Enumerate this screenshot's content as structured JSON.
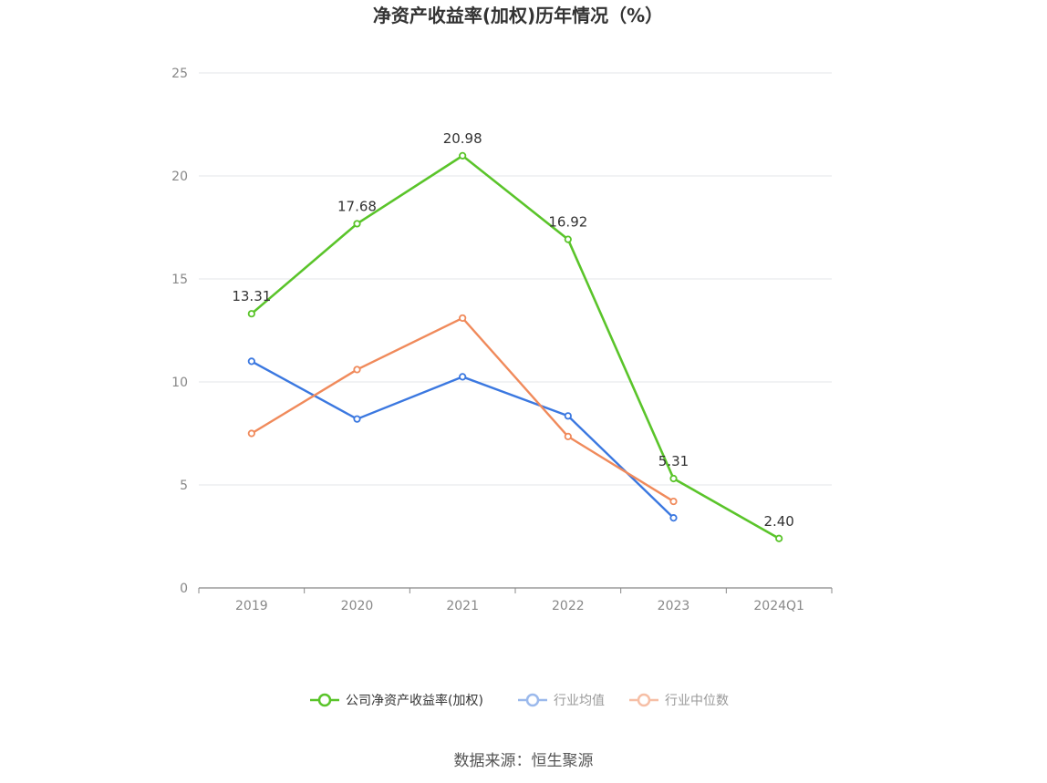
{
  "chart_data": {
    "type": "line",
    "title": "净资产收益率(加权)历年情况（%）",
    "categories": [
      "2019",
      "2020",
      "2021",
      "2022",
      "2023",
      "2024Q1"
    ],
    "ylim": [
      0,
      25
    ],
    "yticks": [
      "0",
      "5",
      "10",
      "15",
      "20",
      "25"
    ],
    "grid": true,
    "legend_position": "bottom",
    "series": [
      {
        "name": "公司净资产收益率(加权)",
        "color": "#5ac42a",
        "values": [
          13.31,
          17.68,
          20.98,
          16.92,
          5.31,
          2.4
        ],
        "labels": [
          "13.31",
          "17.68",
          "20.98",
          "16.92",
          "5.31",
          "2.40"
        ]
      },
      {
        "name": "行业均值",
        "color": "#3b78e0",
        "values": [
          11.0,
          8.2,
          10.25,
          8.35,
          3.4,
          null
        ],
        "labels": []
      },
      {
        "name": "行业中位数",
        "color": "#f08a5b",
        "values": [
          7.5,
          10.6,
          13.1,
          7.35,
          4.2,
          null
        ],
        "labels": []
      }
    ]
  },
  "source": "数据来源：恒生聚源"
}
